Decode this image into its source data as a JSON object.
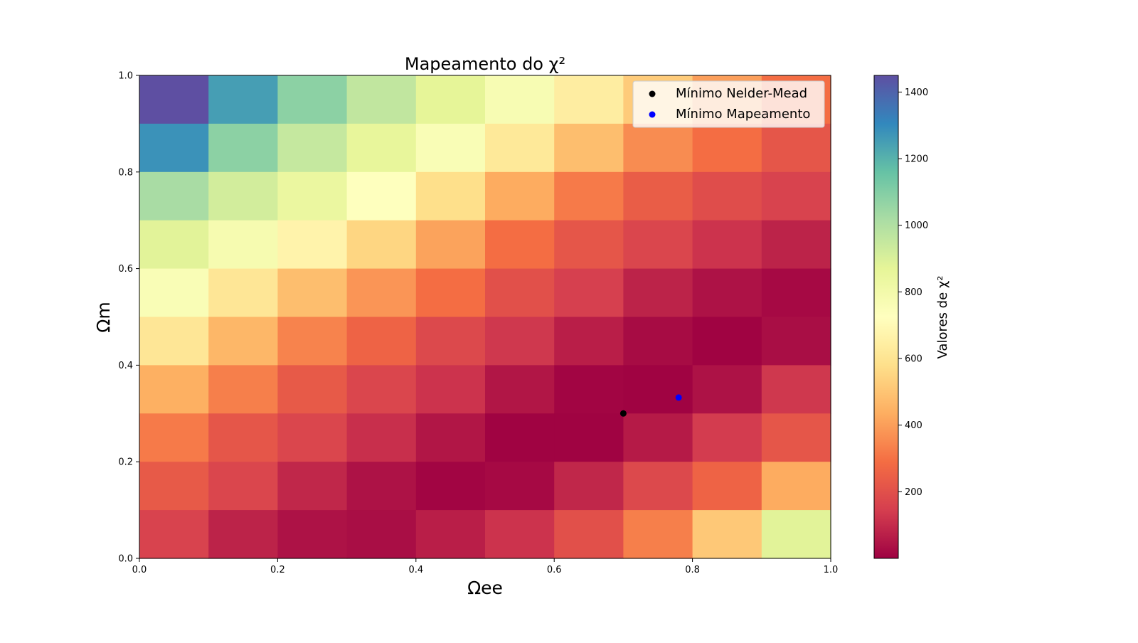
{
  "chart_data": {
    "type": "heatmap",
    "title": "Mapeamento do χ²",
    "xlabel": "Ωee",
    "ylabel": "Ωm",
    "xlim": [
      0.0,
      1.0
    ],
    "ylim": [
      0.0,
      1.0
    ],
    "x_ticks": [
      "0.0",
      "0.2",
      "0.4",
      "0.6",
      "0.8",
      "1.0"
    ],
    "y_ticks": [
      "0.0",
      "0.2",
      "0.4",
      "0.6",
      "0.8",
      "1.0"
    ],
    "x_bins": [
      0.0,
      0.1,
      0.2,
      0.3,
      0.4,
      0.5,
      0.6,
      0.7,
      0.8,
      0.9,
      1.0
    ],
    "y_bins": [
      0.0,
      0.1,
      0.2,
      0.3,
      0.4,
      0.5,
      0.6,
      0.7,
      0.8,
      0.9,
      1.0
    ],
    "values_rows_top_to_bottom": [
      [
        1450,
        1250,
        1080,
        960,
        870,
        770,
        640,
        520,
        400,
        290
      ],
      [
        1280,
        1080,
        950,
        860,
        760,
        620,
        480,
        360,
        290,
        220
      ],
      [
        1020,
        920,
        840,
        730,
        580,
        430,
        320,
        240,
        190,
        160
      ],
      [
        880,
        780,
        670,
        550,
        410,
        290,
        220,
        170,
        120,
        80
      ],
      [
        760,
        610,
        480,
        380,
        290,
        200,
        150,
        80,
        40,
        20
      ],
      [
        610,
        460,
        340,
        260,
        180,
        130,
        70,
        25,
        5,
        30
      ],
      [
        440,
        330,
        230,
        170,
        120,
        50,
        10,
        5,
        40,
        130
      ],
      [
        320,
        220,
        170,
        110,
        50,
        5,
        5,
        60,
        140,
        220
      ],
      [
        230,
        170,
        90,
        40,
        10,
        20,
        90,
        180,
        260,
        430
      ],
      [
        160,
        80,
        40,
        30,
        70,
        120,
        200,
        330,
        510,
        880
      ]
    ],
    "colormap": "Spectral",
    "colorbar": {
      "label": "Valores de χ²",
      "range": [
        0,
        1450
      ],
      "ticks": [
        200,
        400,
        600,
        800,
        1000,
        1200,
        1400
      ]
    },
    "points": [
      {
        "name": "Mínimo Nelder-Mead",
        "x": 0.7,
        "y": 0.3,
        "color": "#000000"
      },
      {
        "name": "Mínimo Mapeamento",
        "x": 0.78,
        "y": 0.333,
        "color": "#0000ff"
      }
    ],
    "legend": {
      "placement": "top-right",
      "entries": [
        "Mínimo Nelder-Mead",
        "Mínimo Mapeamento"
      ]
    },
    "grid": false
  }
}
